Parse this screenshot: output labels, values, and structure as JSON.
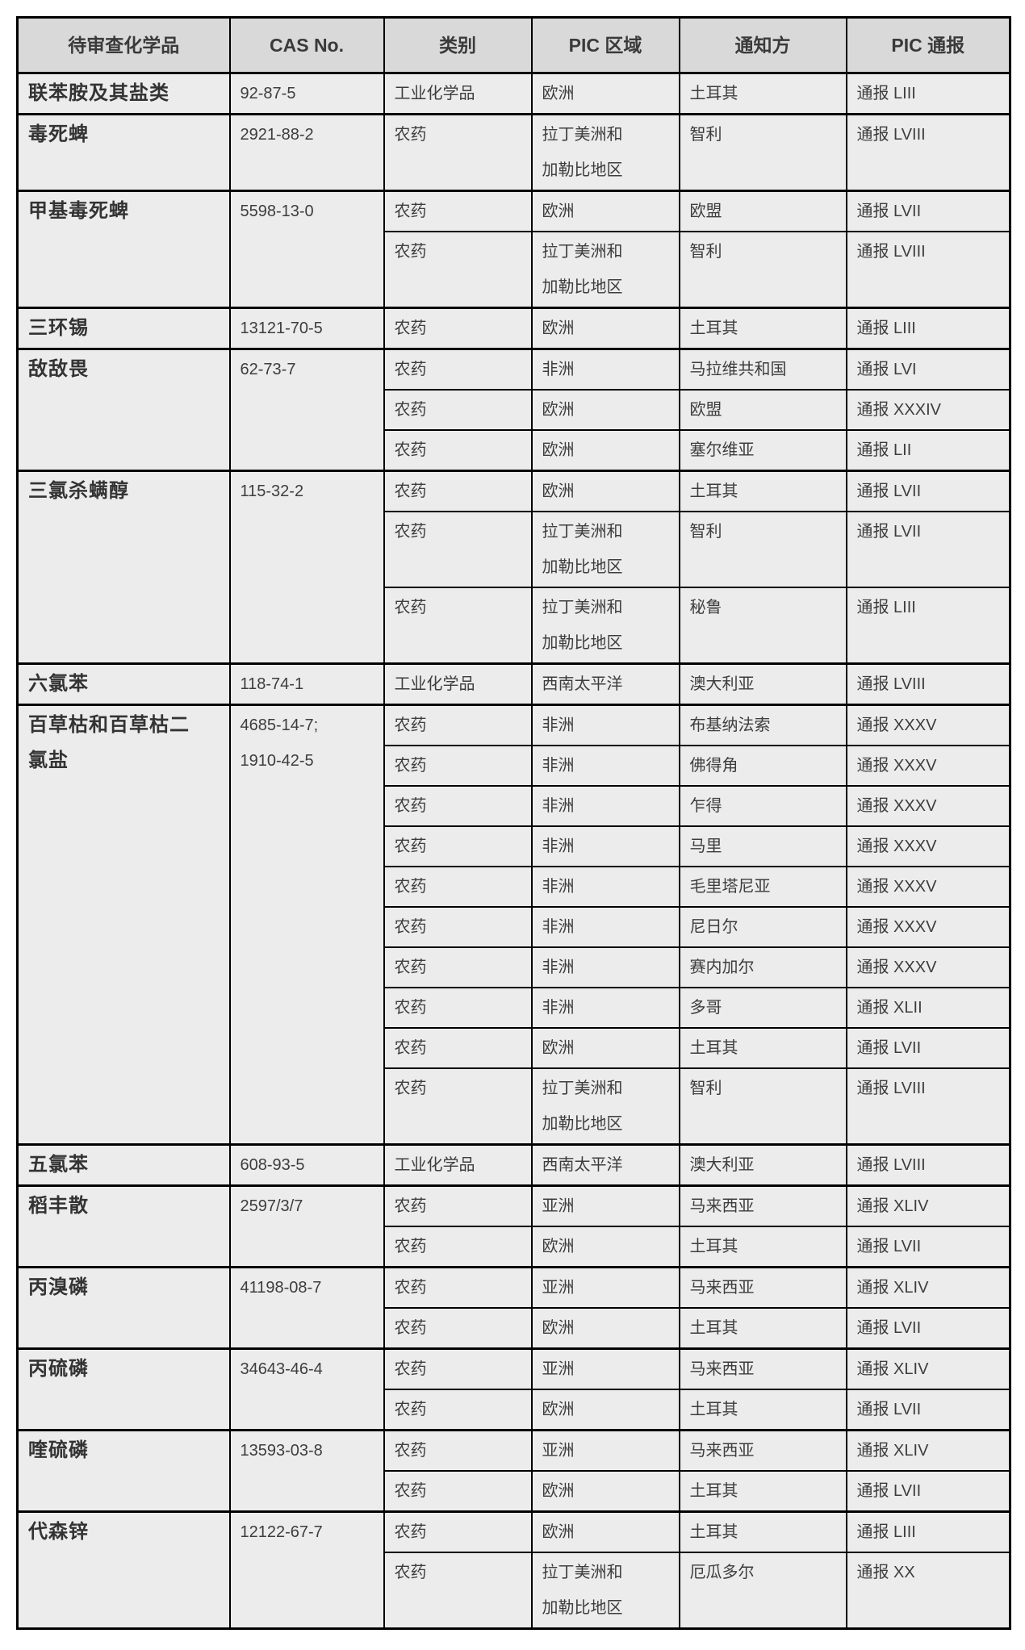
{
  "colors": {
    "page_bg": "#ffffff",
    "header_bg": "#d9d9d9",
    "cell_bg": "#ececec",
    "border_color": "#000000",
    "text_color": "#3d3d3d"
  },
  "table": {
    "headers": [
      "待审查化学品",
      "CAS No.",
      "类别",
      "PIC 区域",
      "通知方",
      "PIC 通报"
    ],
    "groups": [
      {
        "chemical": "联苯胺及其盐类",
        "cas": "92-87-5",
        "rows": [
          [
            "工业化学品",
            "欧洲",
            "土耳其",
            "通报 LIII"
          ]
        ]
      },
      {
        "chemical": "毒死蜱",
        "cas": "2921-88-2",
        "rows": [
          [
            "农药",
            "拉丁美洲和\n加勒比地区",
            "智利",
            "通报 LVIII"
          ]
        ]
      },
      {
        "chemical": "甲基毒死蜱",
        "cas": "5598-13-0",
        "rows": [
          [
            "农药",
            "欧洲",
            "欧盟",
            "通报 LVII"
          ],
          [
            "农药",
            "拉丁美洲和\n加勒比地区",
            "智利",
            "通报 LVIII"
          ]
        ]
      },
      {
        "chemical": "三环锡",
        "cas": "13121-70-5",
        "rows": [
          [
            "农药",
            "欧洲",
            "土耳其",
            "通报 LIII"
          ]
        ]
      },
      {
        "chemical": "敌敌畏",
        "cas": "62-73-7",
        "rows": [
          [
            "农药",
            "非洲",
            "马拉维共和国",
            "通报 LVI"
          ],
          [
            "农药",
            "欧洲",
            "欧盟",
            "通报 XXXIV"
          ],
          [
            "农药",
            "欧洲",
            "塞尔维亚",
            "通报 LII"
          ]
        ]
      },
      {
        "chemical": "三氯杀螨醇",
        "cas": "115-32-2",
        "rows": [
          [
            "农药",
            "欧洲",
            "土耳其",
            "通报 LVII"
          ],
          [
            "农药",
            "拉丁美洲和\n加勒比地区",
            "智利",
            "通报 LVII"
          ],
          [
            "农药",
            "拉丁美洲和\n加勒比地区",
            "秘鲁",
            "通报 LIII"
          ]
        ]
      },
      {
        "chemical": "六氯苯",
        "cas": "118-74-1",
        "rows": [
          [
            "工业化学品",
            "西南太平洋",
            "澳大利亚",
            "通报 LVIII"
          ]
        ]
      },
      {
        "chemical": "百草枯和百草枯二\n氯盐",
        "cas": "4685-14-7;\n1910-42-5",
        "rows": [
          [
            "农药",
            "非洲",
            "布基纳法索",
            "通报 XXXV"
          ],
          [
            "农药",
            "非洲",
            "佛得角",
            "通报 XXXV"
          ],
          [
            "农药",
            "非洲",
            "乍得",
            "通报 XXXV"
          ],
          [
            "农药",
            "非洲",
            "马里",
            "通报 XXXV"
          ],
          [
            "农药",
            "非洲",
            "毛里塔尼亚",
            "通报 XXXV"
          ],
          [
            "农药",
            "非洲",
            "尼日尔",
            "通报 XXXV"
          ],
          [
            "农药",
            "非洲",
            "赛内加尔",
            "通报 XXXV"
          ],
          [
            "农药",
            "非洲",
            "多哥",
            "通报 XLII"
          ],
          [
            "农药",
            "欧洲",
            "土耳其",
            "通报 LVII"
          ],
          [
            "农药",
            "拉丁美洲和\n加勒比地区",
            "智利",
            "通报 LVIII"
          ]
        ]
      },
      {
        "chemical": "五氯苯",
        "cas": "608-93-5",
        "rows": [
          [
            "工业化学品",
            "西南太平洋",
            "澳大利亚",
            "通报 LVIII"
          ]
        ]
      },
      {
        "chemical": "稻丰散",
        "cas": "2597/3/7",
        "rows": [
          [
            "农药",
            "亚洲",
            "马来西亚",
            "通报 XLIV"
          ],
          [
            "农药",
            "欧洲",
            "土耳其",
            "通报 LVII"
          ]
        ]
      },
      {
        "chemical": "丙溴磷",
        "cas": "41198-08-7",
        "rows": [
          [
            "农药",
            "亚洲",
            "马来西亚",
            "通报 XLIV"
          ],
          [
            "农药",
            "欧洲",
            "土耳其",
            "通报 LVII"
          ]
        ]
      },
      {
        "chemical": "丙硫磷",
        "cas": "34643-46-4",
        "rows": [
          [
            "农药",
            "亚洲",
            "马来西亚",
            "通报 XLIV"
          ],
          [
            "农药",
            "欧洲",
            "土耳其",
            "通报 LVII"
          ]
        ]
      },
      {
        "chemical": "喹硫磷",
        "cas": "13593-03-8",
        "rows": [
          [
            "农药",
            "亚洲",
            "马来西亚",
            "通报 XLIV"
          ],
          [
            "农药",
            "欧洲",
            "土耳其",
            "通报 LVII"
          ]
        ]
      },
      {
        "chemical": "代森锌",
        "cas": "12122-67-7",
        "rows": [
          [
            "农药",
            "欧洲",
            "土耳其",
            "通报 LIII"
          ],
          [
            "农药",
            "拉丁美洲和\n加勒比地区",
            "厄瓜多尔",
            "通报 XX"
          ]
        ]
      }
    ]
  }
}
